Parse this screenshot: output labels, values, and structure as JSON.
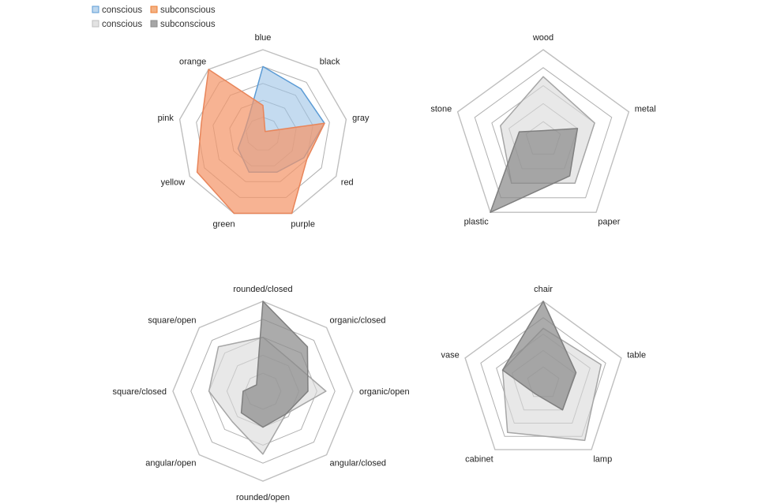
{
  "legend": [
    [
      {
        "label": "conscious",
        "fill": "#bdd7ee",
        "stroke": "#5b9bd5"
      },
      {
        "label": "subconscious",
        "fill": "#f4b183",
        "stroke": "#ed7d31"
      }
    ],
    [
      {
        "label": "conscious",
        "fill": "#e3e3e3",
        "stroke": "#bfbfbf"
      },
      {
        "label": "subconscious",
        "fill": "#a6a6a6",
        "stroke": "#8c8c8c"
      }
    ]
  ],
  "chart_data": [
    {
      "type": "radar",
      "axes": [
        "blue",
        "black",
        "gray",
        "red",
        "purple",
        "green",
        "yellow",
        "pink",
        "orange"
      ],
      "range": [
        0,
        5
      ],
      "rings": 5,
      "grid": true,
      "legend": "top-left",
      "series": [
        {
          "name": "conscious",
          "values": [
            4,
            3.5,
            3.7,
            2.8,
            2.4,
            2.4,
            1.7,
            1.1,
            1.3
          ],
          "fill": "#9dc3e6",
          "stroke": "#5b9bd5"
        },
        {
          "name": "subconscious",
          "values": [
            1.7,
            0.2,
            3.7,
            3.0,
            5,
            5,
            4.5,
            3.7,
            5
          ],
          "fill": "#f4956a",
          "stroke": "#e8855a"
        }
      ]
    },
    {
      "type": "radar",
      "axes": [
        "wood",
        "metal",
        "paper",
        "plastic",
        "stone"
      ],
      "range": [
        0,
        5
      ],
      "rings": 5,
      "grid": true,
      "series": [
        {
          "name": "conscious",
          "values": [
            3.5,
            3.0,
            3.0,
            3.0,
            2.5
          ],
          "fill": "#d9d9d9",
          "stroke": "#a6a6a6"
        },
        {
          "name": "subconscious",
          "values": [
            0.5,
            2.0,
            2.5,
            5,
            1.4
          ],
          "fill": "#8a8a8a",
          "stroke": "#7f7f7f"
        }
      ]
    },
    {
      "type": "radar",
      "axes": [
        "rounded/closed",
        "organic/closed",
        "organic/open",
        "angular/closed",
        "rounded/open",
        "angular/open",
        "square/closed",
        "square/open"
      ],
      "range": [
        0,
        5
      ],
      "rings": 5,
      "grid": true,
      "series": [
        {
          "name": "conscious",
          "values": [
            3,
            2.3,
            3.5,
            1.8,
            3.5,
            2.4,
            3.0,
            3.5
          ],
          "fill": "#d9d9d9",
          "stroke": "#a6a6a6"
        },
        {
          "name": "subconscious",
          "values": [
            5,
            3.5,
            2.5,
            1.8,
            2.0,
            1.7,
            1.1,
            0.5
          ],
          "fill": "#8a8a8a",
          "stroke": "#7f7f7f"
        }
      ]
    },
    {
      "type": "radar",
      "axes": [
        "chair",
        "table",
        "lamp",
        "cabinet",
        "vase"
      ],
      "range": [
        0,
        5
      ],
      "rings": 5,
      "grid": true,
      "series": [
        {
          "name": "conscious",
          "values": [
            3.35,
            3.7,
            4.3,
            3.7,
            2.6
          ],
          "fill": "#d9d9d9",
          "stroke": "#a6a6a6"
        },
        {
          "name": "subconscious",
          "values": [
            5,
            2.1,
            2.0,
            0.8,
            2.6
          ],
          "fill": "#8a8a8a",
          "stroke": "#7f7f7f"
        }
      ]
    }
  ]
}
